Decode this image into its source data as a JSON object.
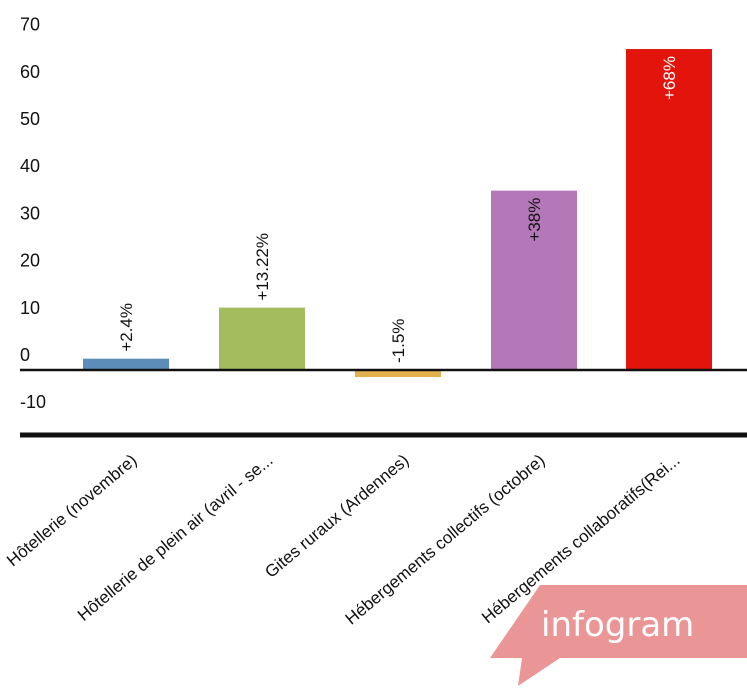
{
  "chart_data": {
    "type": "bar",
    "categories": [
      "Hôtellerie (novembre)",
      "Hôtellerie de plein air (avril - se...",
      "Gites ruraux (Ardennes)",
      "Hébergements collectifs (octobre)",
      "Hébergements collaboratifs(Rei..."
    ],
    "values": [
      2.4,
      13.22,
      -1.5,
      38,
      68
    ],
    "data_labels": [
      "+2.4%",
      "+13.22%",
      "-1.5%",
      "+38%",
      "+68%"
    ],
    "colors": [
      "#5b8db8",
      "#a3bc5d",
      "#e3b04d",
      "#b478b9",
      "#e2140c"
    ],
    "yticks": [
      "70",
      "60",
      "50",
      "40",
      "30",
      "20",
      "10",
      "0",
      "-10"
    ],
    "ylim": [
      -10,
      70
    ],
    "grid": false,
    "title": "",
    "xlabel": "",
    "ylabel": ""
  },
  "branding": {
    "text": "infogram",
    "color": "#e88a8b"
  }
}
